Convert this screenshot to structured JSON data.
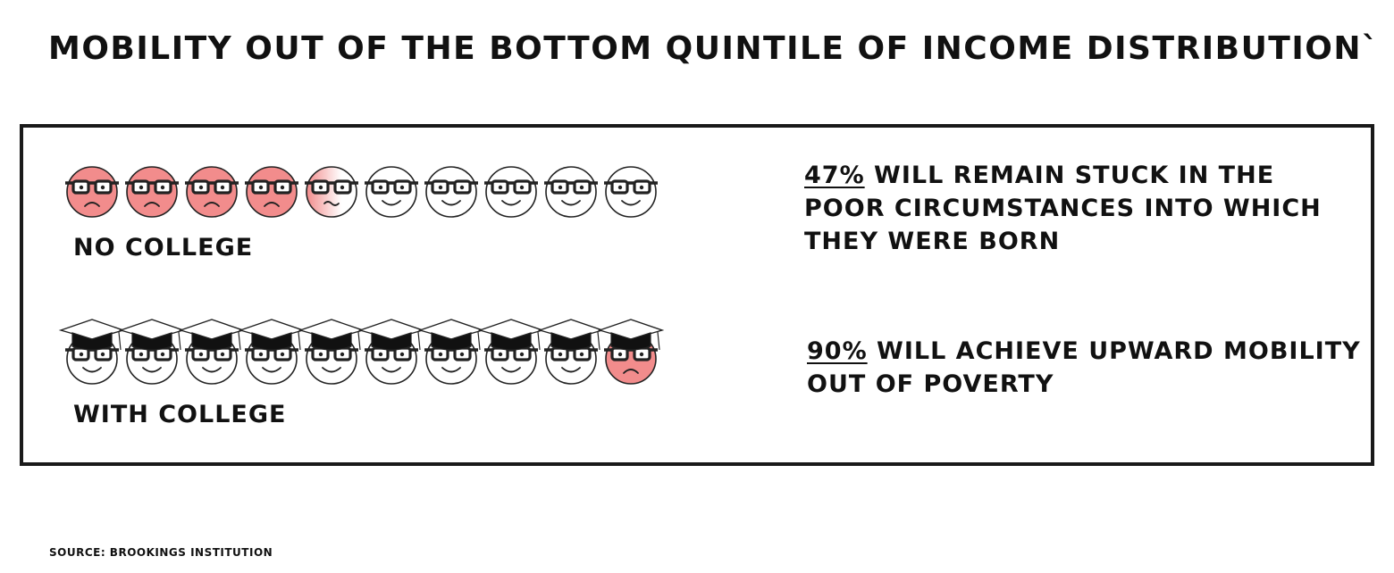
{
  "title": "MOBILITY OUT OF THE BOTTOM QUINTILE OF INCOME DISTRIBUTION`",
  "source": "SOURCE: BROOKINGS INSTITUTION",
  "colors": {
    "sad": "#f28c8c",
    "neutral_fade": "#f28c8c",
    "outline": "#222222"
  },
  "chart_data": {
    "type": "pictogram",
    "faces_per_row": 10,
    "rows": [
      {
        "label": "NO COLLEGE",
        "value_percent": 47,
        "sad_faces": 4.7,
        "faces": [
          "sad",
          "sad",
          "sad",
          "sad",
          "partial",
          "happy",
          "happy",
          "happy",
          "happy",
          "happy"
        ],
        "graduation_cap": false,
        "stat_value": "47%",
        "stat_text": " WILL REMAIN STUCK IN THE POOR CIRCUMSTANCES INTO WHICH THEY WERE BORN"
      },
      {
        "label": "WITH COLLEGE",
        "value_percent": 90,
        "sad_faces": 1,
        "faces": [
          "happy",
          "happy",
          "happy",
          "happy",
          "happy",
          "happy",
          "happy",
          "happy",
          "happy",
          "sad"
        ],
        "graduation_cap": true,
        "stat_value": "90%",
        "stat_text": " WILL ACHIEVE UPWARD MOBILITY OUT OF POVERTY"
      }
    ]
  }
}
